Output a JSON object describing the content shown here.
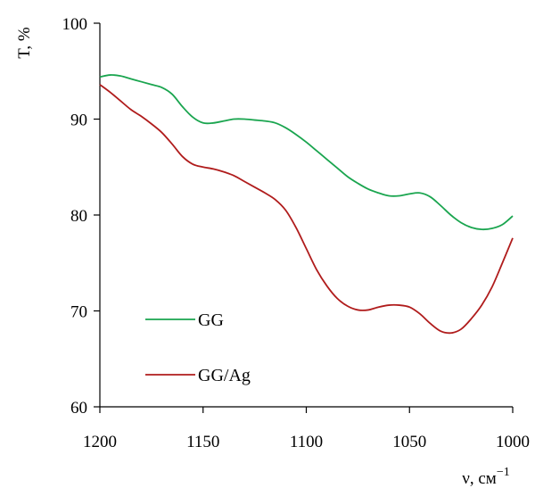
{
  "chart_data": {
    "type": "line",
    "title": "",
    "xlabel": "ν, см",
    "xlabel_superscript": "−1",
    "ylabel": "T, %",
    "xlim": [
      1200,
      1000
    ],
    "x_reversed": true,
    "ylim": [
      60,
      100
    ],
    "x_ticks": [
      1200,
      1150,
      1100,
      1050,
      1000
    ],
    "x_tick_labels": [
      "1200",
      "1150",
      "1100",
      "1050",
      "1000"
    ],
    "y_ticks": [
      60,
      70,
      80,
      90,
      100
    ],
    "y_tick_labels": [
      "60",
      "70",
      "80",
      "90",
      "100"
    ],
    "grid": false,
    "legend_position": "lower-left",
    "series": [
      {
        "name": "GG",
        "color": "#1aa54f",
        "x": [
          1200,
          1195,
          1190,
          1185,
          1180,
          1175,
          1170,
          1165,
          1160,
          1155,
          1150,
          1145,
          1140,
          1135,
          1130,
          1125,
          1120,
          1115,
          1110,
          1105,
          1100,
          1095,
          1090,
          1085,
          1080,
          1075,
          1070,
          1065,
          1060,
          1055,
          1050,
          1045,
          1040,
          1035,
          1030,
          1025,
          1020,
          1015,
          1010,
          1005,
          1000
        ],
        "y": [
          94.4,
          94.6,
          94.5,
          94.2,
          93.9,
          93.6,
          93.3,
          92.6,
          91.3,
          90.2,
          89.6,
          89.6,
          89.8,
          90.0,
          90.0,
          89.9,
          89.8,
          89.6,
          89.1,
          88.4,
          87.6,
          86.7,
          85.8,
          84.9,
          84.0,
          83.3,
          82.7,
          82.3,
          82.0,
          82.0,
          82.2,
          82.3,
          81.9,
          81.0,
          80.0,
          79.2,
          78.7,
          78.5,
          78.6,
          79.0,
          79.9
        ]
      },
      {
        "name": "GG/Ag",
        "color": "#b01c1c",
        "x": [
          1200,
          1195,
          1190,
          1185,
          1180,
          1175,
          1170,
          1165,
          1160,
          1155,
          1150,
          1145,
          1140,
          1135,
          1130,
          1125,
          1120,
          1115,
          1110,
          1105,
          1100,
          1095,
          1090,
          1085,
          1080,
          1075,
          1070,
          1065,
          1060,
          1055,
          1050,
          1045,
          1040,
          1035,
          1030,
          1025,
          1020,
          1015,
          1010,
          1005,
          1000
        ],
        "y": [
          93.6,
          92.8,
          91.9,
          91.0,
          90.3,
          89.5,
          88.6,
          87.4,
          86.1,
          85.3,
          85.0,
          84.8,
          84.5,
          84.1,
          83.5,
          82.9,
          82.3,
          81.6,
          80.5,
          78.7,
          76.5,
          74.3,
          72.6,
          71.3,
          70.5,
          70.1,
          70.1,
          70.4,
          70.6,
          70.6,
          70.4,
          69.7,
          68.7,
          67.9,
          67.7,
          68.1,
          69.2,
          70.6,
          72.5,
          75.0,
          77.6
        ]
      }
    ]
  }
}
